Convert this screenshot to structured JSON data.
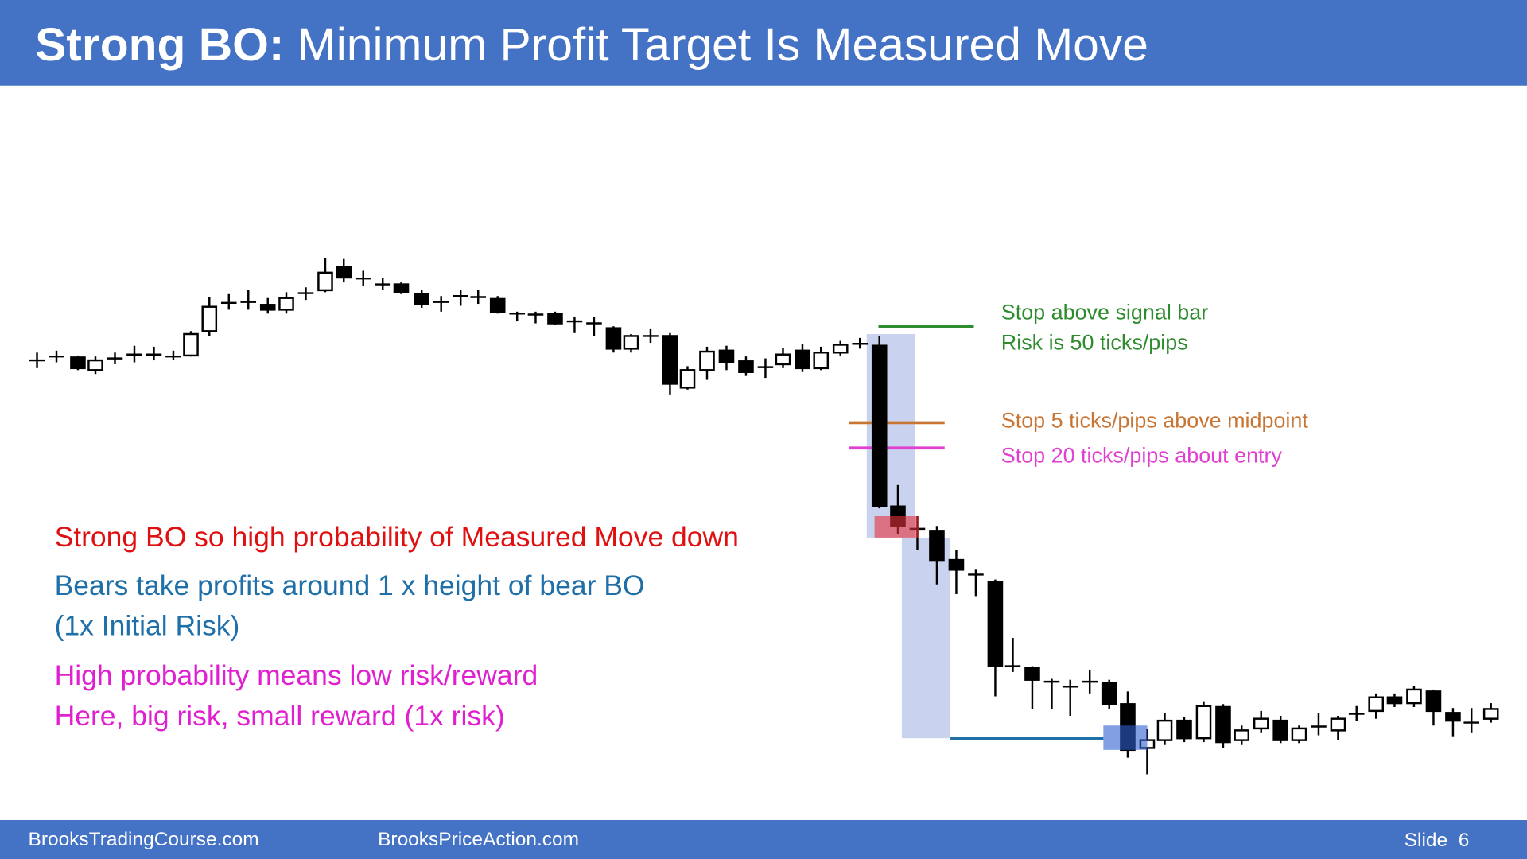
{
  "header": {
    "title_bold": "Strong BO:",
    "title_rest": "Minimum Profit Target Is Measured Move"
  },
  "annotations": {
    "stop_signal": "Stop above signal bar",
    "risk": "Risk is 50 ticks/pips",
    "stop_midpoint": "Stop 5 ticks/pips above midpoint",
    "stop_entry": "Stop 20 ticks/pips about entry"
  },
  "body": {
    "line_1": "Strong BO so high probability of Measured Move down",
    "line_2": "Bears take profits around 1 x height of bear BO",
    "line_3": "(1x Initial Risk)",
    "line_4": "High probability means low risk/reward",
    "line_5": "Here, big risk, small reward (1x risk)"
  },
  "footer": {
    "left": "BrooksTradingCourse.com",
    "middle": "BrooksPriceAction.com",
    "slide": "Slide  6"
  }
}
